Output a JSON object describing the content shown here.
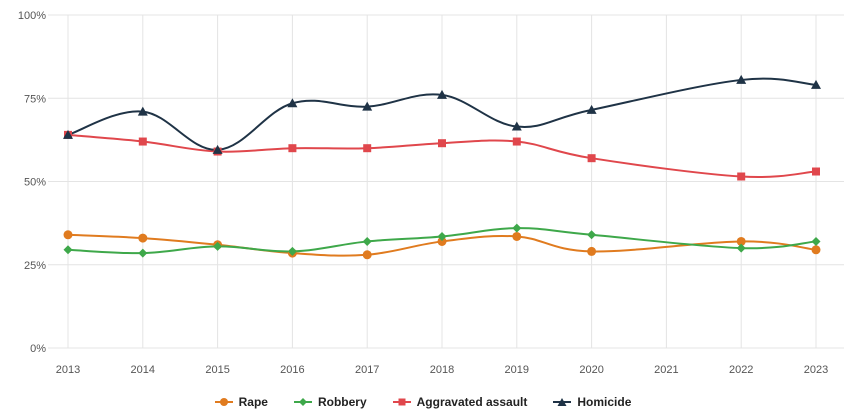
{
  "chart_data": {
    "type": "line",
    "x": [
      "2013",
      "2014",
      "2015",
      "2016",
      "2017",
      "2018",
      "2019",
      "2020",
      "2021",
      "2022",
      "2023"
    ],
    "xlabel": "",
    "ylabel": "",
    "ylim": [
      0,
      100
    ],
    "yticks": [
      0,
      25,
      50,
      75,
      100
    ],
    "ytick_labels": [
      "0%",
      "25%",
      "50%",
      "75%",
      "100%"
    ],
    "grid": "on",
    "legend_position": "bottom",
    "series": [
      {
        "name": "Rape",
        "color": "#e07b1f",
        "marker": "circle",
        "values": [
          34,
          33,
          31,
          28.5,
          28,
          32,
          33.5,
          29,
          null,
          32,
          29.5
        ]
      },
      {
        "name": "Robbery",
        "color": "#3ea84a",
        "marker": "diamond",
        "values": [
          29.5,
          28.5,
          30.5,
          29,
          32,
          33.5,
          36,
          34,
          null,
          30,
          32
        ]
      },
      {
        "name": "Aggravated assault",
        "color": "#e0474c",
        "marker": "square",
        "values": [
          64,
          62,
          59,
          60,
          60,
          61.5,
          62,
          57,
          null,
          51.5,
          53
        ]
      },
      {
        "name": "Homicide",
        "color": "#1f3346",
        "marker": "triangle",
        "values": [
          64,
          71,
          59.5,
          73.5,
          72.5,
          76,
          66.5,
          71.5,
          null,
          80.5,
          79
        ]
      }
    ]
  }
}
